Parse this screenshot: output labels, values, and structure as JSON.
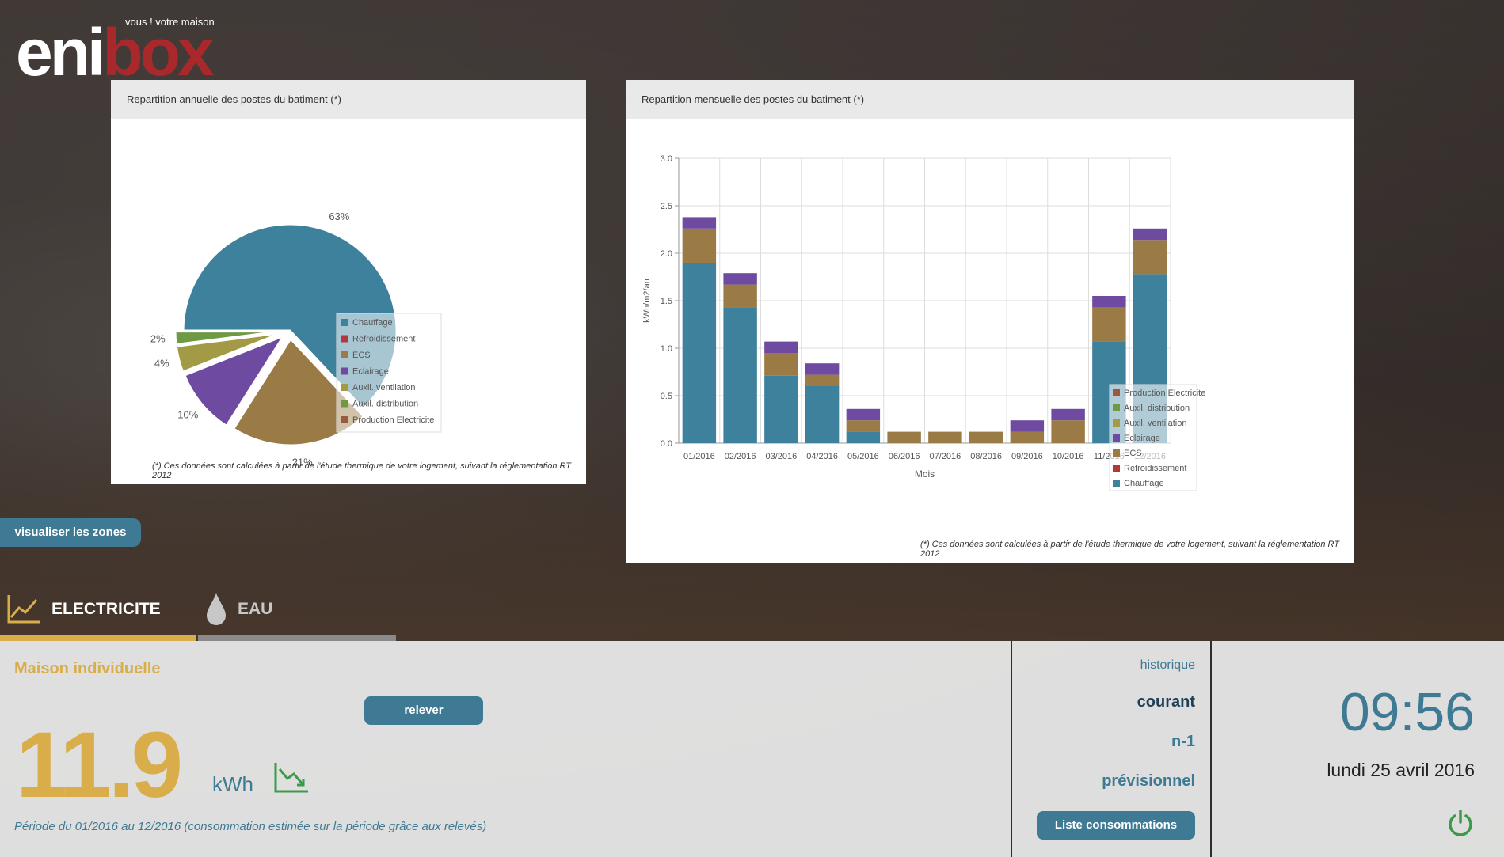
{
  "logo": {
    "tagline": "vous ! votre maison",
    "word_white_1": "eni",
    "word_red": "box",
    "brand_color": "#a8282c"
  },
  "pie_panel": {
    "title": "Repartition annuelle des postes du batiment (*)",
    "footnote": "(*) Ces données sont calculées à partir de l'étude thermique de votre logement, suivant la réglementation RT 2012"
  },
  "bar_panel": {
    "title": "Repartition mensuelle des postes du batiment (*)",
    "footnote": "(*) Ces données sont calculées à partir de l'étude thermique de votre logement, suivant la réglementation RT 2012"
  },
  "chart_data": [
    {
      "type": "pie",
      "slices": [
        {
          "name": "Chauffage",
          "value": 63,
          "label": "63%",
          "color": "#3e819c"
        },
        {
          "name": "Refroidissement",
          "value": 0,
          "label": "",
          "color": "#b2383e"
        },
        {
          "name": "ECS",
          "value": 21,
          "label": "21%",
          "color": "#9a7a45"
        },
        {
          "name": "Eclairage",
          "value": 10,
          "label": "10%",
          "color": "#6e4aa0"
        },
        {
          "name": "Auxil. ventilation",
          "value": 4,
          "label": "4%",
          "color": "#a29a45"
        },
        {
          "name": "Auxil. distribution",
          "value": 2,
          "label": "2%",
          "color": "#6f9a45"
        },
        {
          "name": "Production Electricite",
          "value": 0,
          "label": "",
          "color": "#9a5a40"
        }
      ],
      "legend": [
        "Chauffage",
        "Refroidissement",
        "ECS",
        "Eclairage",
        "Auxil. ventilation",
        "Auxil. distribution",
        "Production Electricite"
      ],
      "legend_position": "right"
    },
    {
      "type": "bar",
      "stacked": true,
      "categories": [
        "01/2016",
        "02/2016",
        "03/2016",
        "04/2016",
        "05/2016",
        "06/2016",
        "07/2016",
        "08/2016",
        "09/2016",
        "10/2016",
        "11/2016",
        "12/2016"
      ],
      "series": [
        {
          "name": "Chauffage",
          "color": "#3e819c",
          "values": [
            1.9,
            1.43,
            0.71,
            0.6,
            0.12,
            0,
            0,
            0,
            0,
            0,
            1.07,
            1.78
          ]
        },
        {
          "name": "Refroidissement",
          "color": "#b2383e",
          "values": [
            0,
            0,
            0,
            0,
            0,
            0,
            0,
            0,
            0,
            0,
            0,
            0
          ]
        },
        {
          "name": "ECS",
          "color": "#9a7a45",
          "values": [
            0.36,
            0.24,
            0.24,
            0.12,
            0.12,
            0.12,
            0.12,
            0.12,
            0.12,
            0.24,
            0.36,
            0.36
          ]
        },
        {
          "name": "Eclairage",
          "color": "#6e4aa0",
          "values": [
            0.12,
            0.12,
            0.12,
            0.12,
            0.12,
            0,
            0,
            0,
            0.12,
            0.12,
            0.12,
            0.12
          ]
        },
        {
          "name": "Auxil. ventilation",
          "color": "#a29a45",
          "values": [
            0,
            0,
            0,
            0,
            0,
            0,
            0,
            0,
            0,
            0,
            0,
            0
          ]
        },
        {
          "name": "Auxil. distribution",
          "color": "#6f9a45",
          "values": [
            0,
            0,
            0,
            0,
            0,
            0,
            0,
            0,
            0,
            0,
            0,
            0
          ]
        },
        {
          "name": "Production Electricite",
          "color": "#9a5a40",
          "values": [
            0,
            0,
            0,
            0,
            0,
            0,
            0,
            0,
            0,
            0,
            0,
            0
          ]
        }
      ],
      "legend": [
        "Production Electricite",
        "Auxil. distribution",
        "Auxil. ventilation",
        "Eclairage",
        "ECS",
        "Refroidissement",
        "Chauffage"
      ],
      "legend_position": "right",
      "ylim": [
        0,
        3.0
      ],
      "yticks": [
        "0.0",
        "0.5",
        "1.0",
        "1.5",
        "2.0",
        "2.5",
        "3.0"
      ],
      "xlabel": "Mois",
      "ylabel": "kWh/m2/an",
      "grid": true
    }
  ],
  "zones_button": "visualiser les zones",
  "tabs": [
    {
      "label": "ELECTRICITE",
      "icon": "line-chart-icon",
      "active": true
    },
    {
      "label": "EAU",
      "icon": "water-drop-icon",
      "active": false
    }
  ],
  "consumption": {
    "title": "Maison individuelle",
    "value": "11.9",
    "unit": "kWh",
    "trend_icon": "trend-down-icon",
    "releve_label": "relever",
    "period": "Période du 01/2016 au 12/2016 (consommation estimée sur la période grâce aux relevés)"
  },
  "menu": {
    "historique": "historique",
    "courant": "courant",
    "n1": "n-1",
    "previsionnel": "prévisionnel",
    "liste_label": "Liste consommations"
  },
  "clock": {
    "time": "09:56",
    "date": "lundi 25 avril 2016",
    "power_icon": "power-icon"
  },
  "colors": {
    "accent_blue": "#3e7a93",
    "accent_gold": "#d9ad4a",
    "power_green": "#3c9a4a"
  }
}
